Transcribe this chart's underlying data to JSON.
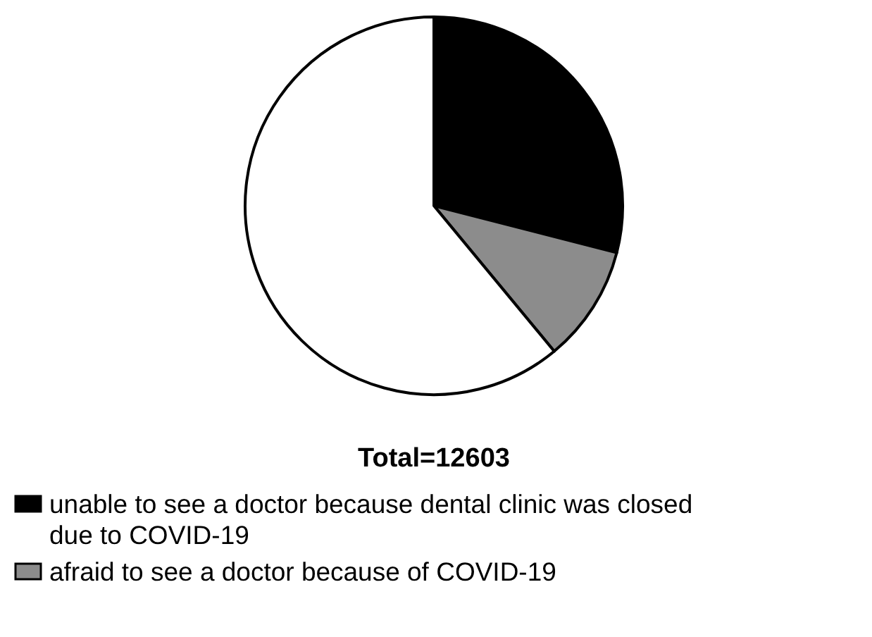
{
  "chart_data": {
    "type": "pie",
    "categories": [
      "unable to see a doctor because dental clinic was closed due to COVID-19",
      "afraid to see a doctor because of COVID-19",
      null
    ],
    "values": [
      29,
      10,
      61
    ],
    "colors": [
      "#000000",
      "#8c8c8c",
      "#ffffff"
    ],
    "legend": "bottom",
    "annotations": [
      "Total=12603"
    ]
  }
}
